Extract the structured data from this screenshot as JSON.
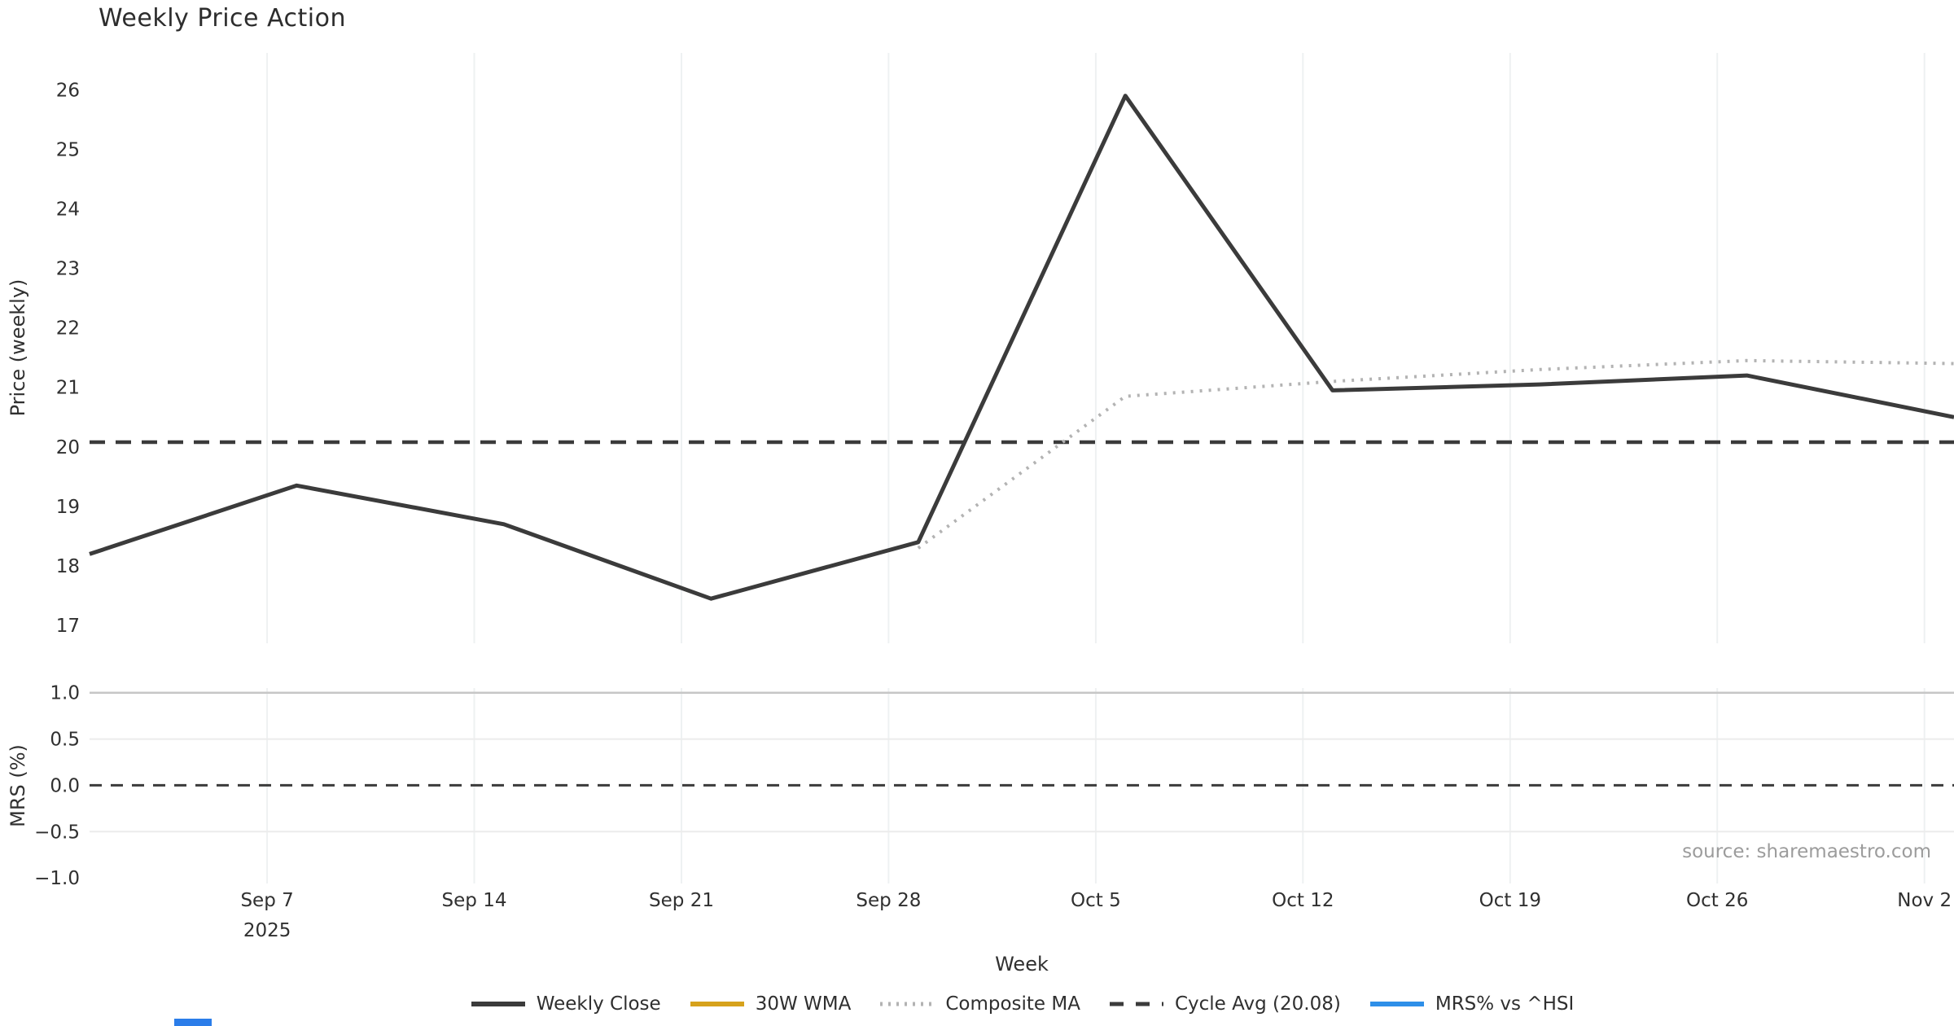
{
  "page": {
    "source_note": "source: sharemaestro.com"
  },
  "colors": {
    "close_line": "#3b3b3b",
    "wma_line": "#d6a21c",
    "composite_line": "#b3b3b3",
    "cycle_line": "#3b3b3b",
    "mrs_line": "#2e8fe8",
    "grid_vertical": "#eef1f2",
    "grid_major": "#c6c6c6",
    "grid_minor": "#ececec",
    "text": "#303030",
    "muted_text": "#9c9c9c",
    "fragment_blue": "#2b7de9"
  },
  "legend": {
    "items": [
      {
        "label": "Weekly Close",
        "style": "solid",
        "color_key": "close_line"
      },
      {
        "label": "30W WMA",
        "style": "solid",
        "color_key": "wma_line"
      },
      {
        "label": "Composite MA",
        "style": "dotted",
        "color_key": "composite_line"
      },
      {
        "label": "Cycle Avg (20.08)",
        "style": "dashed",
        "color_key": "cycle_line"
      },
      {
        "label": "MRS% vs ^HSI",
        "style": "solid",
        "color_key": "mrs_line"
      }
    ]
  },
  "chart_data": {
    "type": "line",
    "title": "Weekly Price Action",
    "xlabel": "Week",
    "x_unit": "days from week of Sep 1 2025, weekly points",
    "x_range_days": [
      0,
      63
    ],
    "x_days": [
      0,
      7,
      14,
      21,
      28,
      35,
      42,
      49,
      56,
      63
    ],
    "x_axis_ticks": [
      {
        "day": 6,
        "label": "Sep 7",
        "sublabel": "2025"
      },
      {
        "day": 13,
        "label": "Sep 14"
      },
      {
        "day": 20,
        "label": "Sep 21"
      },
      {
        "day": 27,
        "label": "Sep 28"
      },
      {
        "day": 34,
        "label": "Oct 5"
      },
      {
        "day": 41,
        "label": "Oct 12"
      },
      {
        "day": 48,
        "label": "Oct 19"
      },
      {
        "day": 55,
        "label": "Oct 26"
      },
      {
        "day": 62,
        "label": "Nov 2"
      }
    ],
    "panels": [
      {
        "name": "price",
        "ylabel": "Price (weekly)",
        "ylim": [
          16.7,
          26.62
        ],
        "yticks": [
          26,
          25,
          24,
          23,
          22,
          21,
          20,
          19,
          18,
          17
        ],
        "grid": "vertical-only",
        "series": [
          {
            "name": "Weekly Close",
            "values": [
              18.2,
              19.35,
              18.7,
              17.45,
              18.4,
              25.9,
              20.95,
              21.05,
              21.2,
              20.5
            ]
          },
          {
            "name": "Composite MA",
            "values": [
              null,
              null,
              null,
              null,
              18.3,
              20.85,
              21.1,
              21.3,
              21.45,
              21.4
            ]
          },
          {
            "name": "30W WMA",
            "values": []
          },
          {
            "name": "Cycle Avg",
            "hline": 20.08
          }
        ]
      },
      {
        "name": "mrs",
        "ylabel": "MRS (%)",
        "ylim": [
          -1.06,
          1.05
        ],
        "ytick_labels": [
          "1.0",
          "0.5",
          "0.0",
          "−0.5",
          "−1.0"
        ],
        "ytick_values": [
          1.0,
          0.5,
          0.0,
          -0.5,
          -1.0
        ],
        "gridlines": [
          {
            "v": 1.0,
            "weight": "major"
          },
          {
            "v": 0.5,
            "weight": "minor"
          },
          {
            "v": -0.5,
            "weight": "minor"
          }
        ],
        "series": [
          {
            "name": "MRS% vs ^HSI",
            "values": []
          },
          {
            "name": "Zero line",
            "hline": 0.0
          }
        ]
      }
    ],
    "legend_position": "bottom-center",
    "source": "source: sharemaestro.com"
  }
}
